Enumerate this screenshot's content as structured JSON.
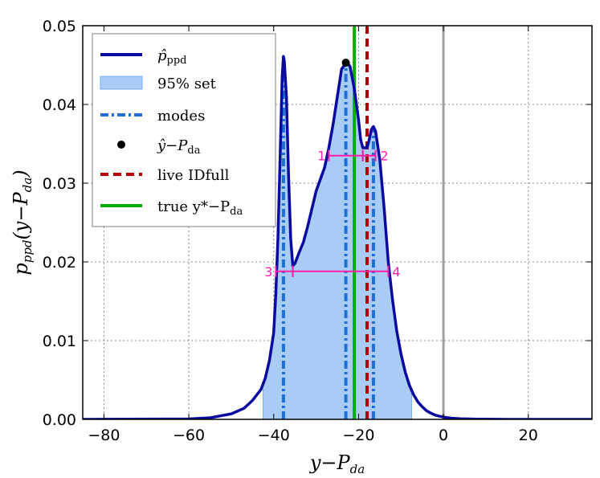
{
  "chart_data": {
    "type": "area",
    "xlabel": "y−P_da",
    "ylabel": "p_ppd(y−P_da)",
    "xlim": [
      -85,
      35
    ],
    "ylim": [
      0,
      0.05
    ],
    "xticks": [
      -80,
      -60,
      -40,
      -20,
      0,
      20
    ],
    "xtick_labels": [
      "−80",
      "−60",
      "−40",
      "−20",
      "0",
      "20"
    ],
    "yticks": [
      0,
      0.01,
      0.02,
      0.03,
      0.04,
      0.05
    ],
    "ytick_labels": [
      "0.00",
      "0.01",
      "0.02",
      "0.03",
      "0.04",
      "0.05"
    ],
    "grid": true,
    "series": [
      {
        "name": "p̂_ppd",
        "color": "#0a0aa0",
        "x": [
          -85,
          -60,
          -55,
          -50,
          -47,
          -45,
          -43,
          -42,
          -41,
          -40,
          -39.5,
          -39,
          -38.5,
          -38,
          -37.7,
          -37.5,
          -37,
          -36.5,
          -36,
          -35.5,
          -35,
          -34,
          -33,
          -32,
          -30,
          -28,
          -27,
          -26,
          -25,
          -24,
          -23,
          -22.5,
          -22,
          -21,
          -20,
          -19.5,
          -19,
          -18.5,
          -18,
          -17.5,
          -17,
          -16.5,
          -16,
          -15,
          -14,
          -13,
          -12,
          -11,
          -10,
          -9,
          -8,
          -7,
          -6,
          -5,
          -4,
          -3,
          -2,
          -1,
          0,
          1,
          2,
          4,
          6,
          8,
          10,
          15,
          20,
          35
        ],
        "y": [
          0,
          5e-05,
          0.0002,
          0.0007,
          0.0014,
          0.0024,
          0.0038,
          0.0052,
          0.0075,
          0.011,
          0.016,
          0.023,
          0.033,
          0.0435,
          0.0461,
          0.0455,
          0.041,
          0.031,
          0.023,
          0.0195,
          0.0198,
          0.0212,
          0.0225,
          0.0245,
          0.029,
          0.032,
          0.0345,
          0.0375,
          0.041,
          0.0445,
          0.0452,
          0.0452,
          0.0448,
          0.042,
          0.038,
          0.0355,
          0.0345,
          0.0345,
          0.0345,
          0.0355,
          0.0368,
          0.0372,
          0.0366,
          0.033,
          0.027,
          0.02,
          0.0152,
          0.0112,
          0.0083,
          0.006,
          0.0043,
          0.0031,
          0.0022,
          0.0016,
          0.0011,
          0.0008,
          0.00055,
          0.0004,
          0.0003,
          0.0002,
          0.00014,
          8e-05,
          5e-05,
          3e-05,
          2e-05,
          5e-06,
          2e-06,
          0
        ]
      }
    ],
    "set_95": {
      "name": "95% set",
      "color": "#a8ccf3",
      "x_range": [
        -42.5,
        -7.5
      ]
    },
    "modes": {
      "name": "modes",
      "color": "#1f6fd6",
      "x": [
        -37.7,
        -23,
        -16.5
      ]
    },
    "point_estimate": {
      "name": "ŷ−P_da",
      "x": -23,
      "y": 0.0453
    },
    "live_idfull": {
      "name": "live IDfull",
      "color": "#b00000",
      "x": -18
    },
    "true_value": {
      "name": "true y*−P_da",
      "color": "#00b000",
      "x": -21
    },
    "zero_line": {
      "x": 0,
      "color": "#a0a0a0"
    },
    "intervals": [
      {
        "label": "1",
        "x0": -27,
        "x1": -19,
        "y": 0.0335
      },
      {
        "label": "2",
        "x0": -19,
        "x1": -16,
        "y": 0.0335
      },
      {
        "label": "3",
        "x0": -39.5,
        "x1": -35.5,
        "y": 0.0188
      },
      {
        "label": "4",
        "x0": -35.5,
        "x1": -13,
        "y": 0.0188
      }
    ]
  },
  "legend": {
    "items": [
      {
        "label": "p̂",
        "sub": "ppd"
      },
      {
        "label": "95% set"
      },
      {
        "label": "modes"
      },
      {
        "label": "ŷ−P",
        "sub": "da"
      },
      {
        "label": "live IDfull"
      },
      {
        "label": "true y*−P",
        "sub": "da"
      }
    ]
  },
  "axes": {
    "xlabel_main": "y−P",
    "xlabel_sub": "da",
    "ylabel_p": "p",
    "ylabel_sub1": "ppd",
    "ylabel_arg": "(y−P",
    "ylabel_sub2": "da",
    "ylabel_close": ")"
  }
}
